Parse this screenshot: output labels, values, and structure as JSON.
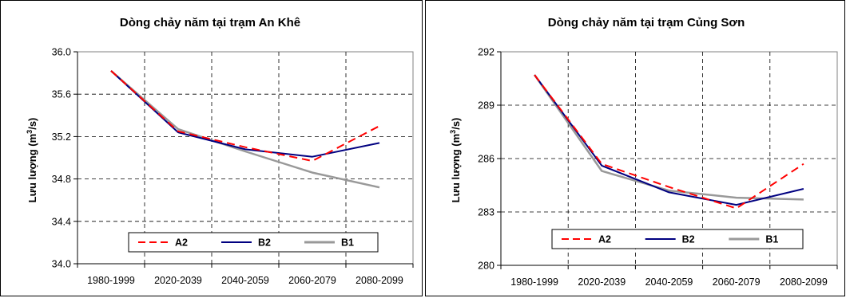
{
  "chart_data": [
    {
      "type": "line",
      "title": "Dòng chảy năm tại trạm An Khê",
      "ylabel_main": "Lưu lượng (m",
      "ylabel_sup": "3",
      "ylabel_tail": "/s)",
      "categories": [
        "1980-1999",
        "2020-2039",
        "2040-2059",
        "2060-2079",
        "2080-2099"
      ],
      "ylim": [
        34.0,
        36.0
      ],
      "yticks": [
        "34.0",
        "34.4",
        "34.8",
        "35.2",
        "35.6",
        "36.0"
      ],
      "ytick_values": [
        34.0,
        34.4,
        34.8,
        35.2,
        35.6,
        36.0
      ],
      "grid": true,
      "legend": "bottom",
      "series": [
        {
          "name": "A2",
          "values": [
            35.82,
            35.25,
            35.1,
            34.97,
            35.3
          ],
          "color": "#ff0000",
          "dash": "dashed"
        },
        {
          "name": "B2",
          "values": [
            35.82,
            35.24,
            35.08,
            35.01,
            35.14
          ],
          "color": "#000080",
          "dash": "solid"
        },
        {
          "name": "B1",
          "values": [
            35.82,
            35.27,
            35.06,
            34.86,
            34.72
          ],
          "color": "#999999",
          "dash": "solid"
        }
      ]
    },
    {
      "type": "line",
      "title": "Dòng chảy năm tại trạm Củng Sơn",
      "ylabel_main": "Lưu lượng (m",
      "ylabel_sup": "3",
      "ylabel_tail": "/s)",
      "categories": [
        "1980-1999",
        "2020-2039",
        "2040-2059",
        "2060-2079",
        "2080-2099"
      ],
      "ylim": [
        280,
        292
      ],
      "yticks": [
        "280",
        "283",
        "286",
        "289",
        "292"
      ],
      "ytick_values": [
        280,
        283,
        286,
        289,
        292
      ],
      "grid": true,
      "legend": "bottom",
      "series": [
        {
          "name": "A2",
          "values": [
            290.7,
            285.7,
            284.4,
            283.2,
            285.7
          ],
          "color": "#ff0000",
          "dash": "dashed"
        },
        {
          "name": "B2",
          "values": [
            290.7,
            285.6,
            284.1,
            283.4,
            284.3
          ],
          "color": "#000080",
          "dash": "solid"
        },
        {
          "name": "B1",
          "values": [
            290.7,
            285.3,
            284.2,
            283.8,
            283.7
          ],
          "color": "#999999",
          "dash": "solid"
        }
      ]
    }
  ]
}
